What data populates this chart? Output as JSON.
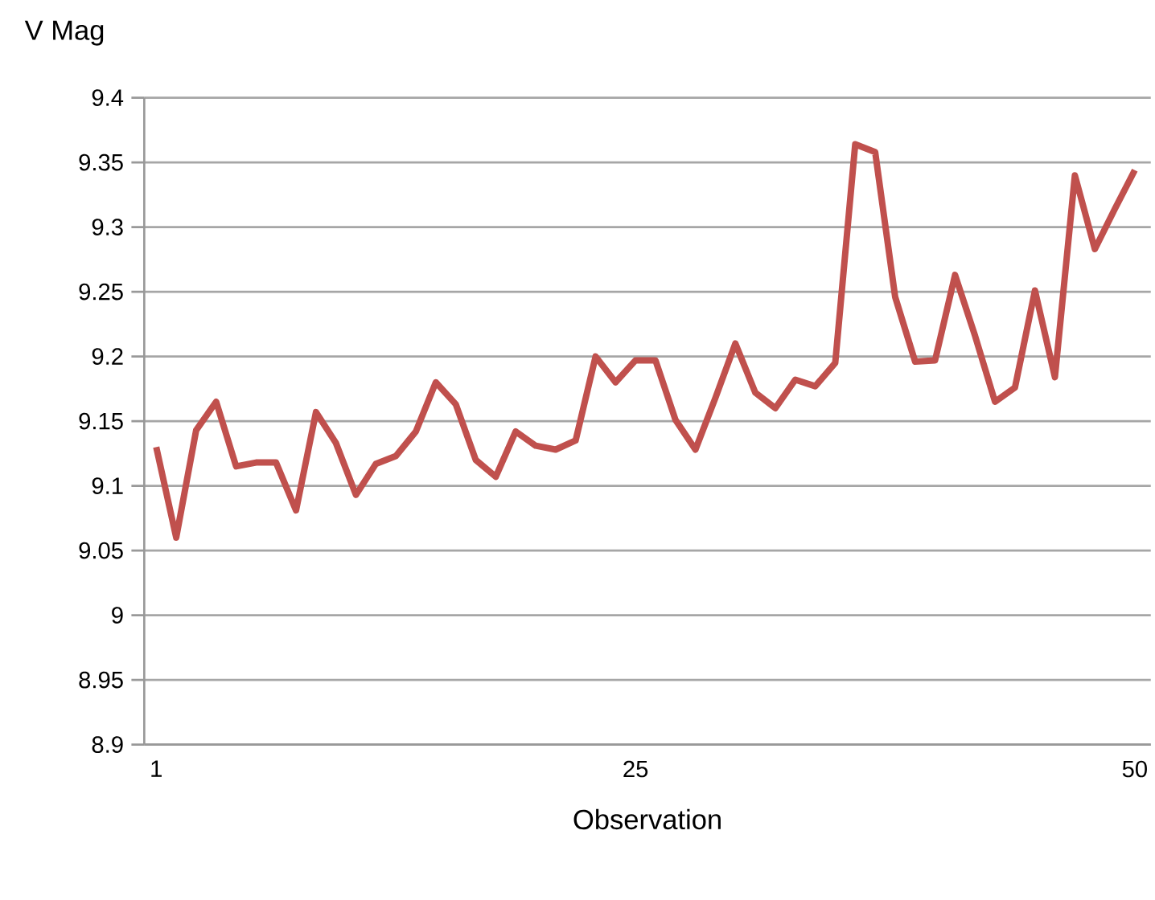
{
  "chart_data": {
    "type": "line",
    "xlabel": "Observation",
    "ylabel": "V Mag",
    "x": [
      1,
      2,
      3,
      4,
      5,
      6,
      7,
      8,
      9,
      10,
      11,
      12,
      13,
      14,
      15,
      16,
      17,
      18,
      19,
      20,
      21,
      22,
      23,
      24,
      25,
      26,
      27,
      28,
      29,
      30,
      31,
      32,
      33,
      34,
      35,
      36,
      37,
      38,
      39,
      40,
      41,
      42,
      43,
      44,
      45,
      46,
      47,
      48,
      49,
      50
    ],
    "series": [
      {
        "color": "#c0504d",
        "values": [
          9.13,
          9.06,
          9.143,
          9.165,
          9.115,
          9.118,
          9.118,
          9.081,
          9.157,
          9.133,
          9.093,
          9.117,
          9.123,
          9.142,
          9.18,
          9.163,
          9.12,
          9.107,
          9.142,
          9.131,
          9.128,
          9.135,
          9.2,
          9.18,
          9.197,
          9.197,
          9.151,
          9.128,
          9.168,
          9.21,
          9.172,
          9.16,
          9.182,
          9.177,
          9.195,
          9.364,
          9.358,
          9.246,
          9.196,
          9.197,
          9.263,
          9.216,
          9.165,
          9.176,
          9.251,
          9.184,
          9.34,
          9.283,
          9.314,
          9.344
        ]
      }
    ],
    "xlim": [
      0.4,
      50.8
    ],
    "xticks": [
      1,
      25,
      50
    ],
    "ylim": [
      8.9,
      9.4
    ],
    "yticks": [
      8.9,
      8.95,
      9,
      9.05,
      9.1,
      9.15,
      9.2,
      9.25,
      9.3,
      9.35,
      9.4
    ],
    "grid": "y",
    "marker": "none",
    "line_style": "solid"
  }
}
